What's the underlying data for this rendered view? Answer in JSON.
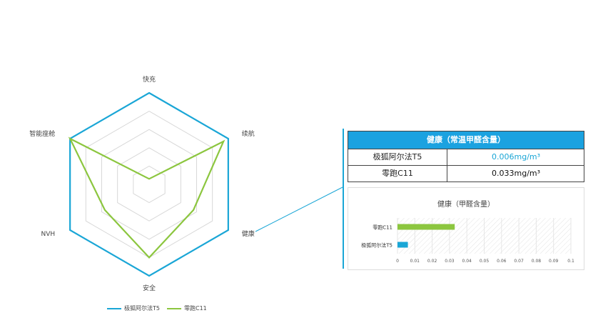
{
  "chart_data": [
    {
      "type": "radar",
      "axes": [
        "快充",
        "续航",
        "健康",
        "安全",
        "NVH",
        "智能座舱"
      ],
      "max": 5,
      "levels": 5,
      "series": [
        {
          "name": "极狐阿尔法T5",
          "color": "#1aa6d6",
          "values": [
            5,
            5,
            5,
            5,
            5,
            5
          ]
        },
        {
          "name": "零跑C11",
          "color": "#8cc63f",
          "values": [
            0.3,
            4.7,
            2.8,
            4.0,
            2.8,
            5.0
          ]
        }
      ]
    },
    {
      "type": "table",
      "title": "健康（常温甲醛含量）",
      "rows": [
        {
          "name": "极狐阿尔法T5",
          "value": "0.006mg/m³",
          "color": "#1aa6d6"
        },
        {
          "name": "零跑C11",
          "value": "0.033mg/m³",
          "color": "#111111"
        }
      ]
    },
    {
      "type": "bar",
      "orientation": "horizontal",
      "title": "健康（甲醛含量）",
      "categories": [
        "零跑C11",
        "极狐阿尔法T5"
      ],
      "values": [
        0.033,
        0.006
      ],
      "colors": [
        "#8cc63f",
        "#1aa6d6"
      ],
      "xlim": [
        0,
        0.1
      ],
      "xticks": [
        "0",
        "0.01",
        "0.02",
        "0.03",
        "0.04",
        "0.05",
        "0.06",
        "0.07",
        "0.08",
        "0.09",
        "0.1"
      ]
    }
  ]
}
